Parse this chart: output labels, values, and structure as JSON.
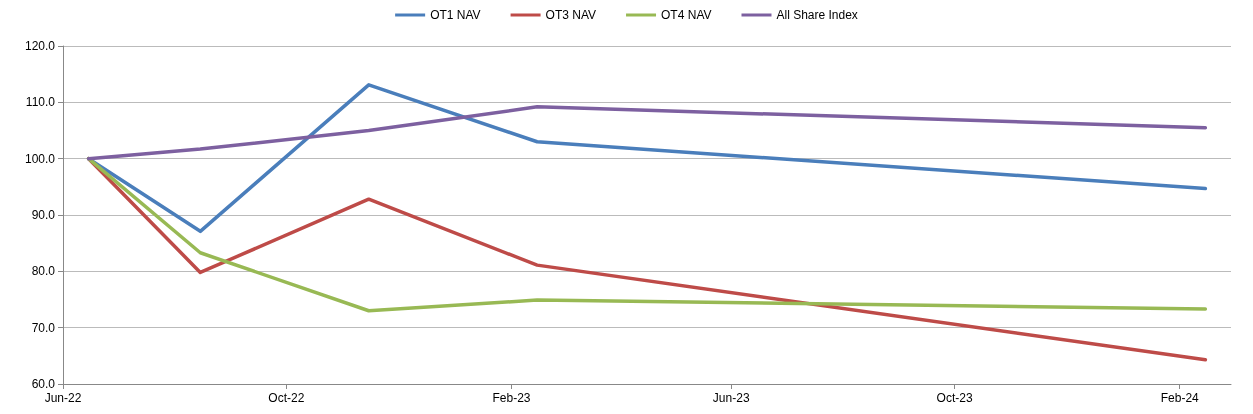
{
  "chart_data": {
    "type": "line",
    "x": [
      "2022-06-15",
      "2022-08-15",
      "2022-11-15",
      "2023-02-15",
      "2024-02-15"
    ],
    "series": [
      {
        "name": "OT1 NAV",
        "color": "#4a7ebb",
        "values": [
          100,
          87.1,
          113.1,
          103.0,
          94.7
        ]
      },
      {
        "name": "OT3 NAV",
        "color": "#be4b48",
        "values": [
          100,
          79.8,
          92.8,
          81.1,
          64.3
        ]
      },
      {
        "name": "OT4 NAV",
        "color": "#98b954",
        "values": [
          100,
          83.3,
          73.0,
          74.9,
          73.3
        ]
      },
      {
        "name": "All Share Index",
        "color": "#7d60a0",
        "values": [
          100,
          101.7,
          105.0,
          109.2,
          105.5
        ]
      }
    ],
    "xlim": [
      "2022-06-01",
      "2024-02-29"
    ],
    "xticks": [
      {
        "value": "2022-06-01",
        "label": "Jun-22"
      },
      {
        "value": "2022-10-01",
        "label": "Oct-22"
      },
      {
        "value": "2023-02-01",
        "label": "Feb-23"
      },
      {
        "value": "2023-06-01",
        "label": "Jun-23"
      },
      {
        "value": "2023-10-01",
        "label": "Oct-23"
      },
      {
        "value": "2024-02-01",
        "label": "Feb-24"
      }
    ],
    "ylim": [
      60,
      120
    ],
    "yticks": [
      {
        "value": 60,
        "label": "60.0"
      },
      {
        "value": 70,
        "label": "70.0"
      },
      {
        "value": 80,
        "label": "80.0"
      },
      {
        "value": 90,
        "label": "90.0"
      },
      {
        "value": 100,
        "label": "100.0"
      },
      {
        "value": 110,
        "label": "110.0"
      },
      {
        "value": 120,
        "label": "120.0"
      }
    ],
    "grid": "y",
    "legend": "top",
    "marker": "none",
    "line_style": "solid"
  }
}
